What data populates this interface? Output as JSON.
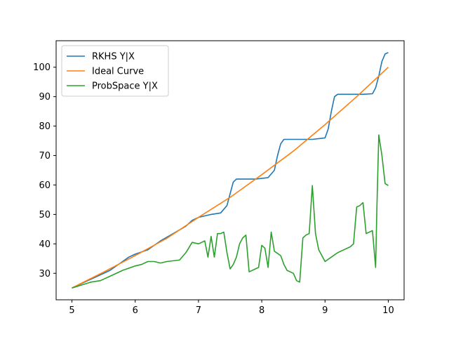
{
  "chart_data": {
    "type": "line",
    "title": "",
    "xlabel": "",
    "ylabel": "",
    "xlim": [
      4.75,
      10.25
    ],
    "ylim": [
      21,
      109
    ],
    "xticks": [
      5,
      6,
      7,
      8,
      9,
      10
    ],
    "yticks": [
      30,
      40,
      50,
      60,
      70,
      80,
      90,
      100
    ],
    "grid": false,
    "legend_position": "top-left",
    "series": [
      {
        "name": "RKHS Y|X",
        "color": "#1f77b4",
        "x": [
          5.0,
          5.2,
          5.4,
          5.6,
          5.8,
          5.9,
          6.0,
          6.2,
          6.4,
          6.6,
          6.8,
          6.9,
          7.0,
          7.2,
          7.35,
          7.45,
          7.5,
          7.55,
          7.6,
          7.7,
          7.9,
          8.1,
          8.2,
          8.25,
          8.3,
          8.35,
          8.4,
          8.6,
          8.8,
          9.0,
          9.05,
          9.1,
          9.15,
          9.2,
          9.4,
          9.6,
          9.75,
          9.8,
          9.85,
          9.9,
          9.95,
          10.0
        ],
        "y": [
          25.0,
          27.0,
          29.0,
          31.0,
          34.0,
          35.5,
          36.5,
          38.0,
          41.0,
          43.5,
          46.0,
          48.0,
          49.0,
          50.0,
          50.5,
          53.0,
          57.0,
          61.0,
          62.0,
          62.0,
          62.0,
          62.5,
          65.0,
          70.0,
          74.0,
          75.5,
          75.5,
          75.5,
          75.5,
          76.0,
          79.0,
          85.0,
          90.0,
          90.8,
          90.8,
          90.8,
          91.0,
          93.0,
          97.0,
          102.0,
          104.5,
          105.0
        ]
      },
      {
        "name": "Ideal Curve",
        "color": "#ff7f0e",
        "x": [
          5.0,
          5.5,
          6.0,
          6.5,
          7.0,
          7.5,
          8.0,
          8.5,
          9.0,
          9.5,
          10.0
        ],
        "y": [
          25.0,
          30.4,
          36.0,
          41.9,
          49.0,
          55.8,
          63.5,
          71.5,
          80.5,
          90.0,
          100.0
        ]
      },
      {
        "name": "ProbSpace Y|X",
        "color": "#2ca02c",
        "x": [
          5.0,
          5.15,
          5.3,
          5.45,
          5.6,
          5.8,
          6.0,
          6.1,
          6.2,
          6.3,
          6.4,
          6.5,
          6.7,
          6.8,
          6.9,
          7.0,
          7.1,
          7.15,
          7.2,
          7.25,
          7.3,
          7.35,
          7.4,
          7.45,
          7.5,
          7.55,
          7.6,
          7.65,
          7.7,
          7.75,
          7.8,
          7.9,
          7.95,
          8.0,
          8.05,
          8.1,
          8.15,
          8.2,
          8.3,
          8.35,
          8.4,
          8.5,
          8.55,
          8.6,
          8.65,
          8.7,
          8.75,
          8.8,
          8.85,
          8.9,
          9.0,
          9.1,
          9.2,
          9.3,
          9.4,
          9.45,
          9.5,
          9.55,
          9.6,
          9.65,
          9.75,
          9.8,
          9.82,
          9.85,
          9.9,
          9.95,
          10.0
        ],
        "y": [
          25.0,
          26.0,
          27.0,
          27.5,
          29.0,
          31.0,
          32.5,
          33.0,
          34.0,
          34.0,
          33.5,
          34.0,
          34.5,
          37.0,
          40.5,
          40.0,
          41.0,
          35.5,
          42.5,
          35.5,
          43.5,
          43.5,
          44.0,
          37.0,
          31.5,
          33.0,
          35.5,
          40.0,
          42.0,
          43.0,
          30.5,
          31.5,
          32.0,
          39.5,
          38.5,
          32.0,
          44.0,
          37.5,
          36.0,
          33.0,
          31.0,
          30.0,
          27.5,
          27.0,
          42.0,
          43.0,
          43.5,
          59.8,
          43.5,
          38.0,
          34.0,
          35.5,
          37.0,
          38.0,
          39.0,
          40.0,
          52.5,
          53.0,
          54.0,
          43.5,
          44.5,
          32.0,
          52.0,
          77.0,
          70.0,
          60.5,
          59.8
        ]
      }
    ]
  }
}
